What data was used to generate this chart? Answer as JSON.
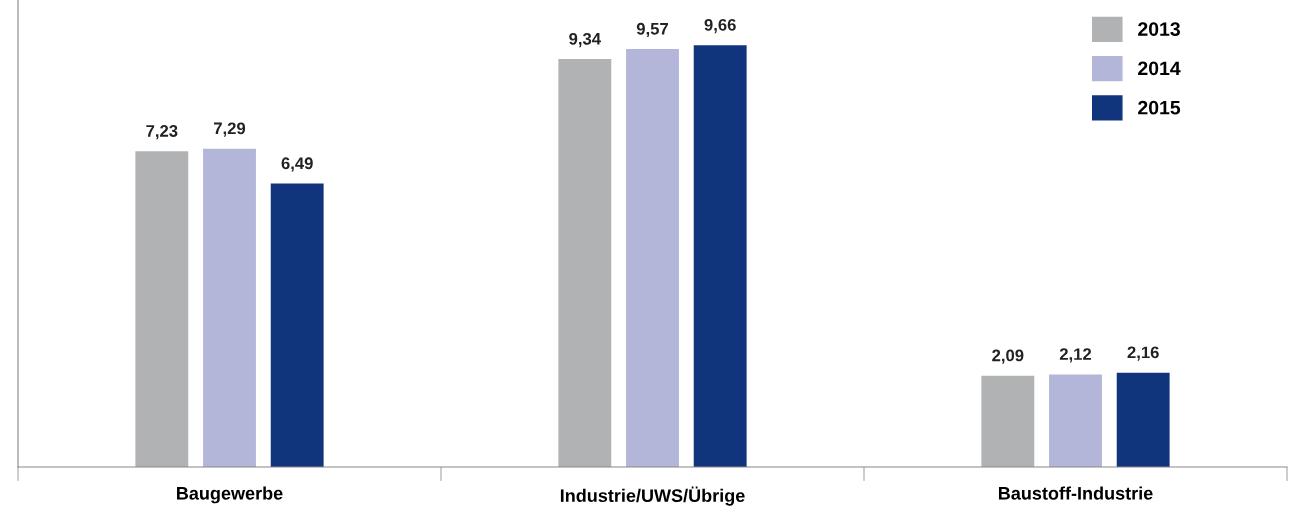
{
  "chart_data": {
    "type": "bar",
    "categories": [
      "Baugewerbe",
      "Industrie/UWS/Übrige",
      "Baustoff-Industrie"
    ],
    "series": [
      {
        "name": "2013",
        "color": "#b1b2b4",
        "values": [
          7.23,
          9.34,
          2.09
        ],
        "value_labels": [
          "7,23",
          "9,34",
          "2,09"
        ]
      },
      {
        "name": "2014",
        "color": "#b3b6d9",
        "values": [
          7.29,
          9.57,
          2.12
        ],
        "value_labels": [
          "7,29",
          "9,57",
          "2,12"
        ]
      },
      {
        "name": "2015",
        "color": "#10357c",
        "values": [
          6.49,
          9.66,
          2.16
        ],
        "value_labels": [
          "6,49",
          "9,66",
          "2,16"
        ]
      }
    ],
    "legend": "top right",
    "grid": false
  }
}
